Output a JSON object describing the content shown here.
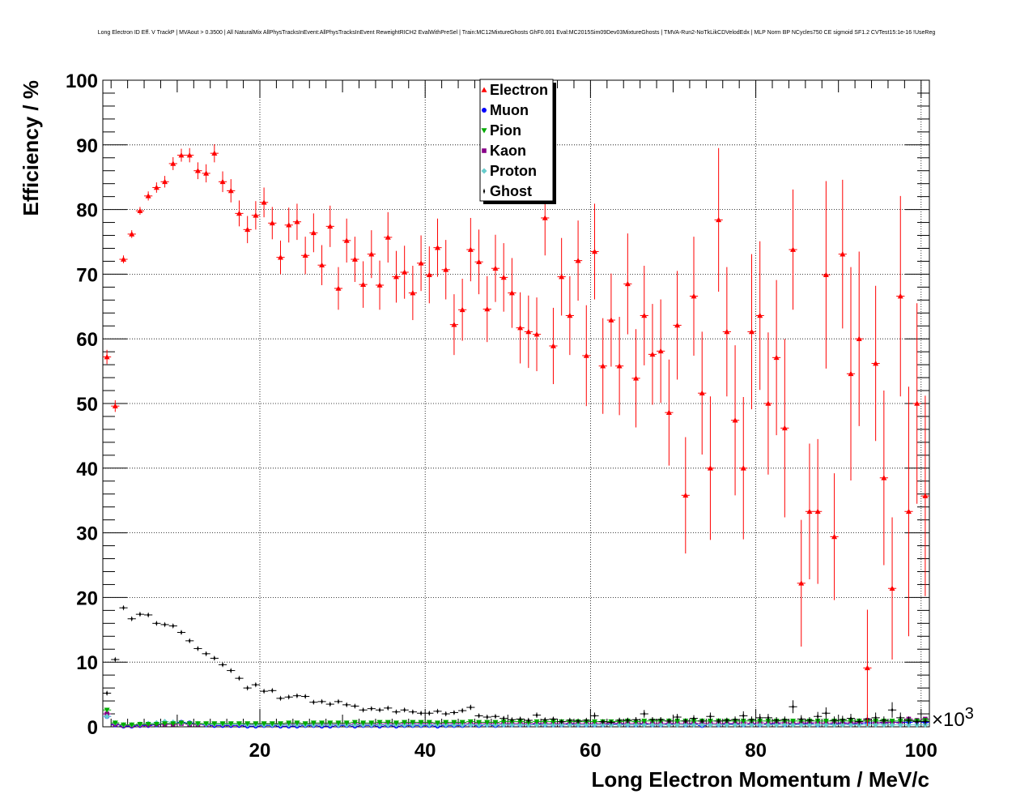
{
  "chart_data": {
    "type": "scatter",
    "title": "Long Electron ID Eff. V TrackP | MVAout > 0.3500 | All NaturalMix AllPhysTracksInEvent:AllPhysTracksInEvent ReweightRICH2 EvalWithPreSel | Train:MC12MixtureGhosts GhF0.001 Eval:MC2015Sim09Dev03MixtureGhosts | TMVA-Run2-NoTkLikCDVelodEdx | MLP Norm BP NCycles750 CE sigmoid SF1.2 CVTest15:1e-16 !UseReg",
    "xlabel": "Long Electron Momentum / MeV/c",
    "ylabel": "Efficiency / %",
    "x_exponent_label": "×10",
    "x_exponent_power": "3",
    "xlim": [
      1000,
      101000
    ],
    "ylim": [
      0,
      100
    ],
    "x_ticks": [
      {
        "value": 20000,
        "label": "20"
      },
      {
        "value": 40000,
        "label": "40"
      },
      {
        "value": 60000,
        "label": "60"
      },
      {
        "value": 80000,
        "label": "80"
      },
      {
        "value": 100000,
        "label": "100"
      }
    ],
    "y_ticks": [
      {
        "value": 0,
        "label": "0"
      },
      {
        "value": 10,
        "label": "10"
      },
      {
        "value": 20,
        "label": "20"
      },
      {
        "value": 30,
        "label": "30"
      },
      {
        "value": 40,
        "label": "40"
      },
      {
        "value": 50,
        "label": "50"
      },
      {
        "value": 60,
        "label": "60"
      },
      {
        "value": 70,
        "label": "70"
      },
      {
        "value": 80,
        "label": "80"
      },
      {
        "value": 90,
        "label": "90"
      },
      {
        "value": 100,
        "label": "100"
      }
    ],
    "grid": true,
    "legend_position": "top-center",
    "series": [
      {
        "name": "Electron",
        "color": "#ff0000",
        "marker": "triangle",
        "x_start": 1500,
        "x_step": 1000,
        "values": [
          57.2,
          49.6,
          72.3,
          76.2,
          79.8,
          82.1,
          83.4,
          84.3,
          87.1,
          88.4,
          88.4,
          86.0,
          85.6,
          88.7,
          84.3,
          82.9,
          79.4,
          76.9,
          79.1,
          81.1,
          77.9,
          72.6,
          77.6,
          78.1,
          72.9,
          76.4,
          71.4,
          77.4,
          67.8,
          75.2,
          72.3,
          68.4,
          73.1,
          68.3,
          75.7,
          69.6,
          70.3,
          67.1,
          71.7,
          69.9,
          74.1,
          70.7,
          62.2,
          64.5,
          73.8,
          71.9,
          64.6,
          70.9,
          69.5,
          67.1,
          61.7,
          61.1,
          60.7,
          78.7,
          58.9,
          69.6,
          63.6,
          72.1,
          57.4,
          73.5,
          55.8,
          62.9,
          55.8,
          68.5,
          53.9,
          63.6,
          57.6,
          58.1,
          48.6,
          62.1,
          35.8,
          66.6,
          51.6,
          40.0,
          78.4,
          61.1,
          47.4,
          40.0,
          61.1,
          63.6,
          50.0,
          57.1,
          46.2,
          73.8,
          22.2,
          33.3,
          33.3,
          69.9,
          29.4,
          73.1,
          54.6,
          60.0,
          9.1,
          56.2,
          38.5,
          21.4,
          66.6,
          33.3,
          50.0,
          35.7
        ],
        "errors": [
          1.1,
          0.9,
          0.6,
          0.6,
          0.6,
          0.7,
          0.8,
          0.9,
          1.0,
          1.0,
          1.1,
          1.3,
          1.4,
          1.4,
          1.6,
          1.8,
          2.0,
          2.1,
          2.2,
          2.3,
          2.5,
          2.6,
          2.7,
          2.8,
          2.9,
          3.0,
          3.1,
          3.2,
          3.3,
          3.4,
          3.5,
          3.6,
          3.7,
          3.8,
          3.9,
          4.0,
          4.1,
          4.2,
          4.3,
          4.4,
          4.5,
          4.6,
          4.7,
          4.8,
          4.9,
          5.0,
          5.1,
          5.2,
          5.3,
          5.4,
          5.5,
          5.6,
          5.7,
          5.8,
          5.9,
          6.0,
          6.1,
          6.2,
          7.8,
          7.4,
          7.4,
          7.2,
          7.6,
          7.8,
          7.6,
          7.7,
          7.8,
          8.0,
          8.2,
          8.4,
          9.0,
          9.2,
          9.5,
          11.1,
          11.1,
          10.0,
          11.6,
          11.0,
          12.0,
          11.5,
          11.0,
          12.0,
          13.8,
          9.3,
          9.8,
          10.5,
          11.2,
          14.5,
          9.8,
          11.5,
          16.5,
          13.5,
          9.0,
          12.0,
          13.5,
          11.0,
          15.5,
          19.3,
          15.5,
          15.5
        ],
        "first_index_shown": 0
      },
      {
        "name": "Muon",
        "color": "#0000ff",
        "marker": "circle",
        "x_start": 1500,
        "x_step": 1000,
        "values": [
          1.6,
          0.3,
          0.1,
          0.1,
          0.2,
          0.2,
          0.3,
          0.4,
          0.5,
          0.7,
          0.6,
          0.4,
          0.3,
          0.2,
          0.2,
          0.2,
          0.2,
          0.1,
          0.1,
          0.2,
          0.2,
          0.1,
          0.1,
          0.1,
          0.2,
          0.2,
          0.1,
          0.1,
          0.2,
          0.2,
          0.1,
          0.2,
          0.2,
          0.1,
          0.2,
          0.1,
          0.2,
          0.2,
          0.2,
          0.2,
          0.1,
          0.2,
          0.2,
          0.2,
          0.3,
          0.2,
          0.3,
          0.2,
          0.3,
          0.3,
          0.3,
          0.3,
          0.4,
          0.3,
          0.3,
          0.3,
          0.4,
          0.3,
          0.3,
          0.3,
          0.3,
          0.4,
          0.4,
          0.3,
          0.3,
          0.4,
          0.3,
          0.3,
          0.4,
          0.5,
          0.3,
          0.4,
          0.2,
          0.5,
          0.3,
          0.4,
          0.4,
          0.3,
          0.4,
          0.3,
          0.4,
          0.5,
          0.3,
          0.4,
          0.4,
          0.5,
          0.3,
          0.5,
          0.4,
          0.6,
          0.4,
          0.5,
          0.6,
          0.6,
          0.6,
          0.7,
          0.7,
          0.7,
          0.8,
          0.7
        ],
        "errors": [],
        "first_index_shown": 0
      },
      {
        "name": "Pion",
        "color": "#00aa00",
        "marker": "triangle-down",
        "x_start": 1500,
        "x_step": 1000,
        "values": [
          2.6,
          0.6,
          0.3,
          0.3,
          0.4,
          0.4,
          0.4,
          0.5,
          0.5,
          0.6,
          0.5,
          0.5,
          0.5,
          0.5,
          0.5,
          0.5,
          0.5,
          0.5,
          0.5,
          0.5,
          0.5,
          0.5,
          0.6,
          0.6,
          0.5,
          0.6,
          0.6,
          0.6,
          0.6,
          0.6,
          0.7,
          0.6,
          0.6,
          0.7,
          0.7,
          0.6,
          0.7,
          0.7,
          0.7,
          0.7,
          0.6,
          0.7,
          0.7,
          0.7,
          0.8,
          0.7,
          0.7,
          0.7,
          0.8,
          0.8,
          0.8,
          0.7,
          0.8,
          0.8,
          0.8,
          0.8,
          0.8,
          0.8,
          0.8,
          0.8,
          0.8,
          0.8,
          0.8,
          0.9,
          0.8,
          0.9,
          0.9,
          0.9,
          0.9,
          0.9,
          0.9,
          0.9,
          0.9,
          0.9,
          0.9,
          0.9,
          0.9,
          0.9,
          0.9,
          0.9,
          0.9,
          0.9,
          0.9,
          0.9,
          0.9,
          0.9,
          0.9,
          0.9,
          0.9,
          0.9,
          0.9,
          0.9,
          0.9,
          0.9,
          0.9,
          0.9,
          0.9,
          0.9,
          0.9,
          1.0
        ],
        "errors": [],
        "first_index_shown": 0
      },
      {
        "name": "Kaon",
        "color": "#880088",
        "marker": "square",
        "x_start": 1500,
        "x_step": 1000,
        "values": [
          2.0,
          0.4,
          0.2,
          0.2,
          0.3,
          0.3,
          0.4,
          0.4,
          0.4,
          0.5,
          0.4,
          0.4,
          0.4,
          0.4,
          0.4,
          0.4,
          0.4,
          0.4,
          0.4,
          0.4,
          0.4,
          0.4,
          0.4,
          0.4,
          0.4,
          0.4,
          0.4,
          0.4,
          0.4,
          0.4,
          0.4,
          0.4,
          0.4,
          0.4,
          0.5,
          0.4,
          0.5,
          0.5,
          0.5,
          0.5,
          0.5,
          0.5,
          0.5,
          0.5,
          0.5,
          0.5,
          0.5,
          0.5,
          0.5,
          0.5,
          0.5,
          0.5,
          0.5,
          0.5,
          0.5,
          0.5,
          0.5,
          0.5,
          0.5,
          0.5,
          0.5,
          0.5,
          0.5,
          0.5,
          0.5,
          0.5,
          0.5,
          0.5,
          0.5,
          0.5,
          0.5,
          0.5,
          0.5,
          0.5,
          0.5,
          0.5,
          0.5,
          0.6,
          0.5,
          0.6,
          0.5,
          0.6,
          0.6,
          0.5,
          0.6,
          0.6,
          0.6,
          0.5,
          0.6,
          0.5,
          0.6,
          0.6,
          1.0,
          0.6,
          0.7,
          0.7,
          0.6,
          1.2,
          1.0,
          1.2
        ],
        "errors": [],
        "first_index_shown": 0
      },
      {
        "name": "Proton",
        "color": "#66cccc",
        "marker": "diamond",
        "x_start": 1500,
        "x_step": 1000,
        "values": [
          1.6,
          0.6,
          0.3,
          0.3,
          0.4,
          0.5,
          0.6,
          0.8,
          0.7,
          0.6,
          0.5,
          0.5,
          0.4,
          0.4,
          0.4,
          0.4,
          0.4,
          0.3,
          0.3,
          0.3,
          0.3,
          0.3,
          0.3,
          0.3,
          0.3,
          0.3,
          0.3,
          0.3,
          0.3,
          0.3,
          0.3,
          0.3,
          0.3,
          0.3,
          0.3,
          0.3,
          0.3,
          0.3,
          0.3,
          0.3,
          0.3,
          0.3,
          0.3,
          0.3,
          0.3,
          0.3,
          0.3,
          0.3,
          0.3,
          0.3,
          0.3,
          0.3,
          0.3,
          0.3,
          0.3,
          0.3,
          0.3,
          0.3,
          0.3,
          0.3,
          0.3,
          0.3,
          0.3,
          0.3,
          0.3,
          0.3,
          0.3,
          0.3,
          0.3,
          0.3,
          0.3,
          0.3,
          0.3,
          0.3,
          0.3,
          0.3,
          0.3,
          0.3,
          0.3,
          0.3,
          0.3,
          0.3,
          0.3,
          0.3,
          0.3,
          0.3,
          0.3,
          0.3,
          0.3,
          0.3,
          0.3,
          0.3,
          0.3,
          0.3,
          0.3,
          0.3,
          0.3,
          0.3,
          0.3,
          0.3
        ],
        "errors": [],
        "first_index_shown": 0
      },
      {
        "name": "Ghost",
        "color": "#000000",
        "marker": "star",
        "x_start": 1500,
        "x_step": 1000,
        "values": [
          5.2,
          10.4,
          18.4,
          16.7,
          17.4,
          17.3,
          16.0,
          15.8,
          15.6,
          14.6,
          13.3,
          12.1,
          11.3,
          10.6,
          9.6,
          8.7,
          7.5,
          6.0,
          6.5,
          5.5,
          5.6,
          4.4,
          4.6,
          4.8,
          4.7,
          3.8,
          3.9,
          3.5,
          3.9,
          3.4,
          3.2,
          2.6,
          2.8,
          2.6,
          2.9,
          2.3,
          2.6,
          2.3,
          2.1,
          2.1,
          2.4,
          2.0,
          2.2,
          2.5,
          3.0,
          1.7,
          1.5,
          1.6,
          1.3,
          1.1,
          1.2,
          1.0,
          1.8,
          1.1,
          1.2,
          0.8,
          1.0,
          0.9,
          1.0,
          1.7,
          0.8,
          0.7,
          1.0,
          1.0,
          1.1,
          2.0,
          1.1,
          1.1,
          0.9,
          1.5,
          0.9,
          1.3,
          0.9,
          1.6,
          0.9,
          1.0,
          1.1,
          1.7,
          1.1,
          1.4,
          1.4,
          1.0,
          1.1,
          3.1,
          1.2,
          1.0,
          1.6,
          2.1,
          1.0,
          1.1,
          1.3,
          0.8,
          1.2,
          1.4,
          1.0,
          2.6,
          1.4,
          1.0,
          0.8,
          0.8
        ],
        "errors": [
          0.2,
          0.2,
          0.2,
          0.2,
          0.2,
          0.2,
          0.2,
          0.2,
          0.2,
          0.2,
          0.2,
          0.2,
          0.2,
          0.2,
          0.2,
          0.2,
          0.2,
          0.2,
          0.2,
          0.2,
          0.2,
          0.2,
          0.2,
          0.2,
          0.2,
          0.2,
          0.2,
          0.2,
          0.2,
          0.2,
          0.2,
          0.2,
          0.2,
          0.2,
          0.2,
          0.2,
          0.2,
          0.2,
          0.2,
          0.3,
          0.3,
          0.3,
          0.3,
          0.3,
          0.4,
          0.3,
          0.3,
          0.3,
          0.3,
          0.3,
          0.3,
          0.3,
          0.4,
          0.3,
          0.3,
          0.3,
          0.3,
          0.3,
          0.3,
          0.5,
          0.3,
          0.3,
          0.4,
          0.4,
          0.4,
          0.6,
          0.4,
          0.4,
          0.4,
          0.5,
          0.4,
          0.5,
          0.4,
          0.6,
          0.4,
          0.4,
          0.5,
          0.7,
          0.5,
          0.6,
          0.6,
          0.5,
          0.5,
          1.0,
          0.6,
          0.5,
          0.7,
          0.9,
          0.6,
          0.6,
          0.7,
          0.5,
          0.7,
          0.8,
          0.6,
          1.2,
          0.8,
          0.6,
          0.5,
          0.5
        ],
        "first_index_shown": 0
      }
    ]
  }
}
